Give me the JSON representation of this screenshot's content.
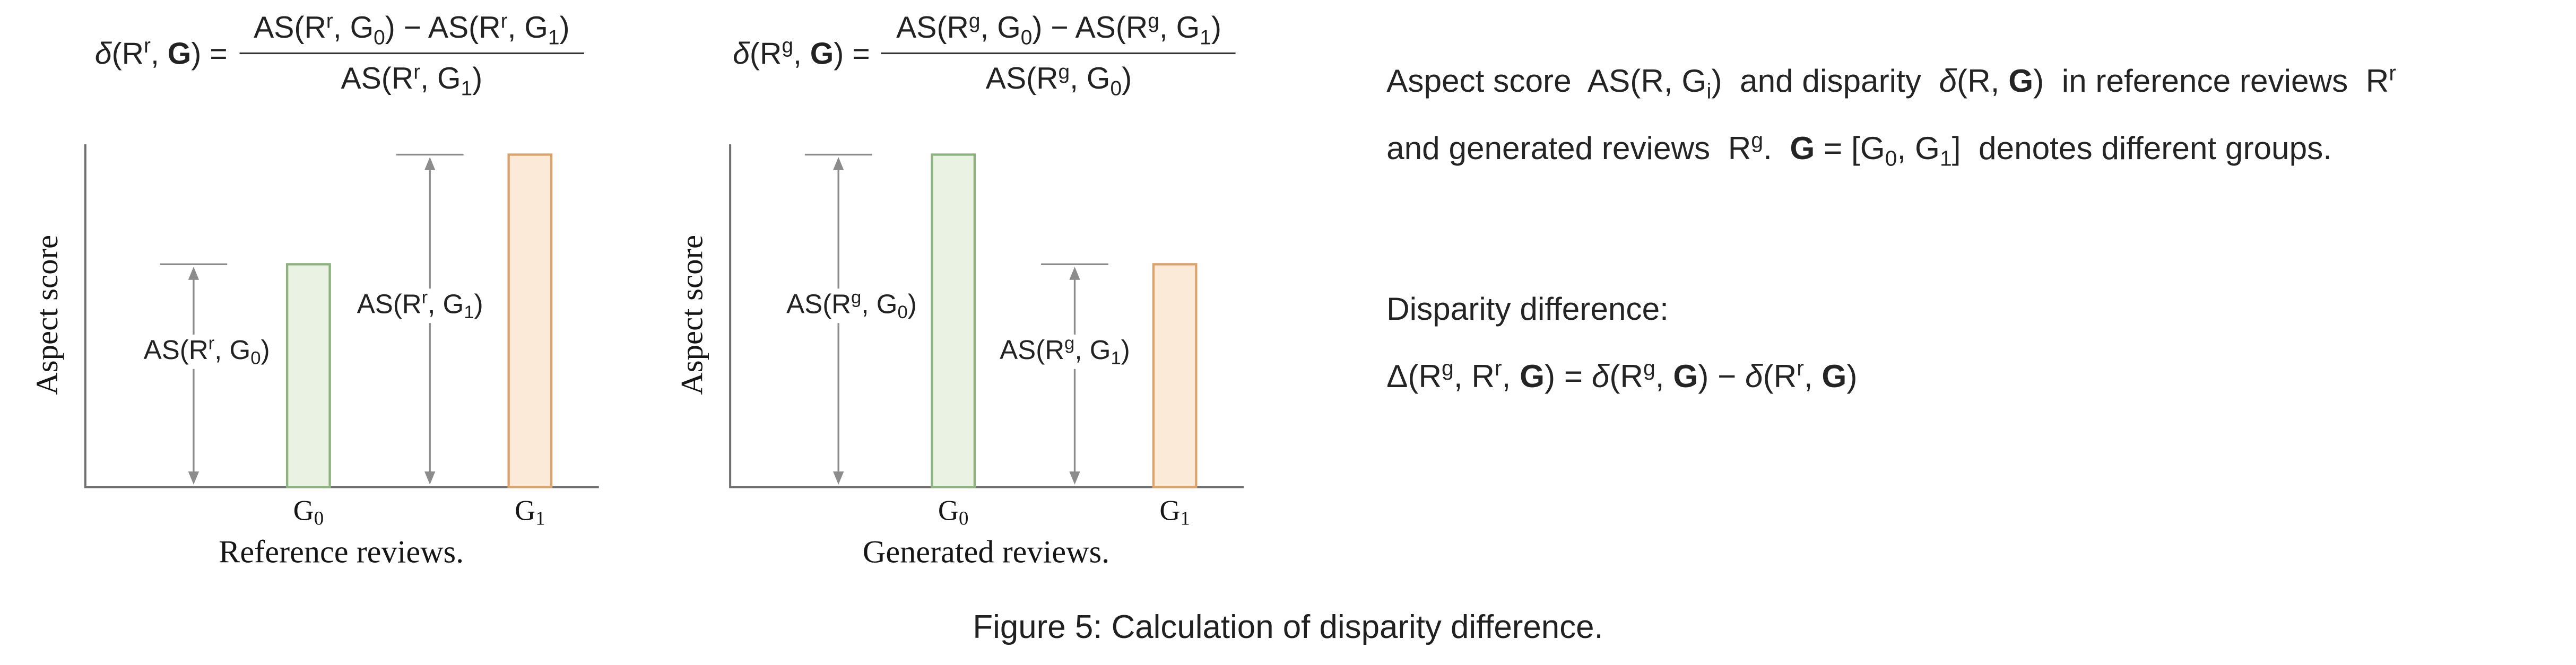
{
  "figure": {
    "caption": "Figure 5: Calculation of disparity difference."
  },
  "charts": [
    {
      "name": "Reference reviews",
      "formula_lhs": "<i>δ</i>(R<sup>r</sup>, <b>G</b>) =",
      "formula_numerator": "AS(R<sup>r</sup>, G<sub>0</sub>) − AS(R<sup>r</sup>, G<sub>1</sub>)",
      "formula_denominator": "AS(R<sup>r</sup>, G<sub>1</sub>)",
      "ylabel": "Aspect score",
      "measure_labels": [
        "AS(R<sup>r</sup>, G<sub>0</sub>)",
        "AS(R<sup>r</sup>, G<sub>1</sub>)"
      ],
      "tick_labels": [
        "G<sub>0</sub>",
        "G<sub>1</sub>"
      ],
      "caption": "Reference reviews."
    },
    {
      "name": "Generated reviews",
      "formula_lhs": "<i>δ</i>(R<sup>g</sup>, <b>G</b>) =",
      "formula_numerator": "AS(R<sup>g</sup>, G<sub>0</sub>) − AS(R<sup>g</sup>, G<sub>1</sub>)",
      "formula_denominator": "AS(R<sup>g</sup>, G<sub>0</sub>)",
      "ylabel": "Aspect score",
      "measure_labels": [
        "AS(R<sup>g</sup>, G<sub>0</sub>)",
        "AS(R<sup>g</sup>, G<sub>1</sub>)"
      ],
      "tick_labels": [
        "G<sub>0</sub>",
        "G<sub>1</sub>"
      ],
      "caption": "Generated reviews."
    }
  ],
  "note": {
    "line1": "Aspect score&nbsp; AS(R, G<sub>i</sub>) &nbsp;and disparity&nbsp; <i>δ</i>(R, <b>G</b>) &nbsp;in reference reviews&nbsp; R<sup>r</sup>",
    "line2": "and generated reviews&nbsp; R<sup>g</sup>. &nbsp;<b>G</b> = [G<sub>0</sub>, G<sub>1</sub>] &nbsp;denotes different groups.",
    "disparity_heading": "Disparity difference:",
    "disparity_equation": "Δ(R<sup>g</sup>, R<sup>r</sup>, <b>G</b>) = <i>δ</i>(R<sup>g</sup>, <b>G</b>) − <i>δ</i>(R<sup>r</sup>, <b>G</b>)"
  },
  "chart_data": [
    {
      "type": "bar",
      "title": "Reference reviews.",
      "xlabel": "",
      "ylabel": "Aspect score",
      "categories": [
        "G0",
        "G1"
      ],
      "values": [
        0.65,
        0.97
      ],
      "ylim": [
        0,
        1
      ],
      "ticks_shown": false,
      "annotations": [
        "AS(R^r, G_0) double arrow measures G0 bar height",
        "AS(R^r, G_1) double arrow measures G1 bar height"
      ],
      "formula": "δ(R^r, G) = (AS(R^r, G_0) − AS(R^r, G_1)) / AS(R^r, G_1)",
      "bar_fill_colors": [
        "#eaf2e4",
        "#fcead8"
      ],
      "bar_edge_colors": [
        "#8cb37e",
        "#dba26a"
      ],
      "axis_color": "#6f6f6f",
      "arrow_color": "#8c8c8c"
    },
    {
      "type": "bar",
      "title": "Generated reviews.",
      "xlabel": "",
      "ylabel": "Aspect score",
      "categories": [
        "G0",
        "G1"
      ],
      "values": [
        0.97,
        0.65
      ],
      "ylim": [
        0,
        1
      ],
      "ticks_shown": false,
      "annotations": [
        "AS(R^g, G_0) double arrow measures G0 bar height",
        "AS(R^g, G_1) double arrow measures G1 bar height"
      ],
      "formula": "δ(R^g, G) = (AS(R^g, G_0) − AS(R^g, G_1)) / AS(R^g, G_0)",
      "bar_fill_colors": [
        "#eaf2e4",
        "#fcead8"
      ],
      "bar_edge_colors": [
        "#8cb37e",
        "#dba26a"
      ],
      "axis_color": "#6f6f6f",
      "arrow_color": "#8c8c8c"
    }
  ]
}
